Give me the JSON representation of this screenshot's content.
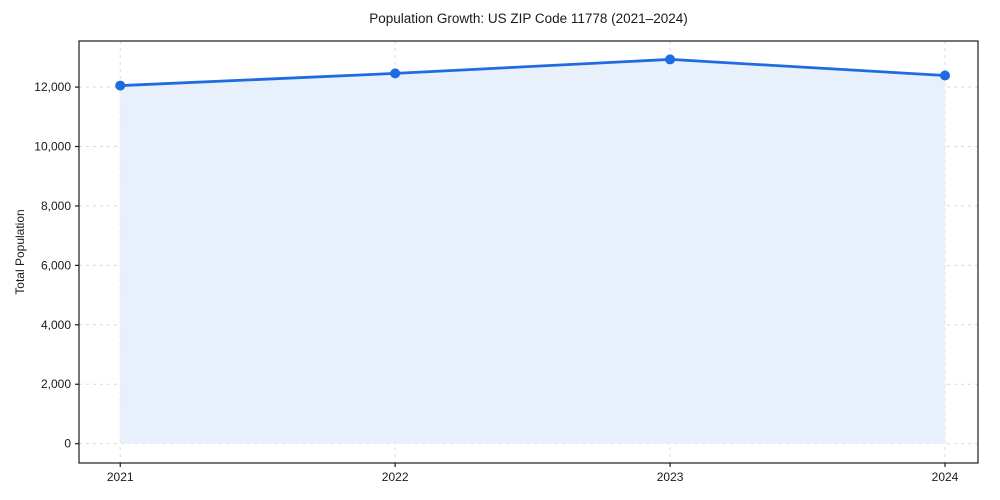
{
  "chart_data": {
    "type": "area",
    "title": "Population Growth: US ZIP Code 11778 (2021–2024)",
    "x": [
      2021,
      2022,
      2023,
      2024
    ],
    "series": [
      {
        "name": "Total Population",
        "values": [
          12050,
          12460,
          12930,
          12390
        ]
      }
    ],
    "xlabel": "",
    "ylabel": "Total Population",
    "x_tick_labels": [
      "2021",
      "2022",
      "2023",
      "2024"
    ],
    "y_ticks": [
      0,
      2000,
      4000,
      6000,
      8000,
      10000,
      12000
    ],
    "y_tick_labels": [
      "0",
      "2,000",
      "4,000",
      "6,000",
      "8,000",
      "10,000",
      "12,000"
    ],
    "xlim": [
      2020.85,
      2024.12
    ],
    "ylim": [
      -650,
      13550
    ],
    "grid": true,
    "grid_style": "dashed",
    "legend": "none",
    "marker": "circle",
    "fill_to_y": 0,
    "colors": {
      "line": "#1f6be0",
      "fill": "#e8f0fb",
      "grid": "#d9d9d9",
      "spine": "#1a1a1a",
      "text": "#1a1a1a",
      "background": "#ffffff"
    }
  }
}
